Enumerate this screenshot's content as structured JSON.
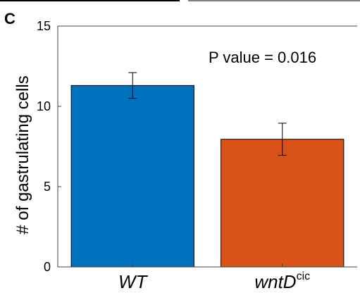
{
  "panel_label": "C",
  "chart_data": {
    "type": "bar",
    "categories": [
      "WT",
      "wntD"
    ],
    "category_superscripts": [
      "",
      "cic"
    ],
    "values": [
      11.3,
      7.95
    ],
    "error": [
      0.8,
      1.0
    ],
    "colors": [
      "#0072BD",
      "#D95319"
    ],
    "ylabel": "# of gastrulating cells",
    "xlabel": "",
    "ylim": [
      0,
      15
    ],
    "yticks": [
      0,
      5,
      10,
      15
    ],
    "annotation": "P value = 0.016",
    "grid": false
  }
}
